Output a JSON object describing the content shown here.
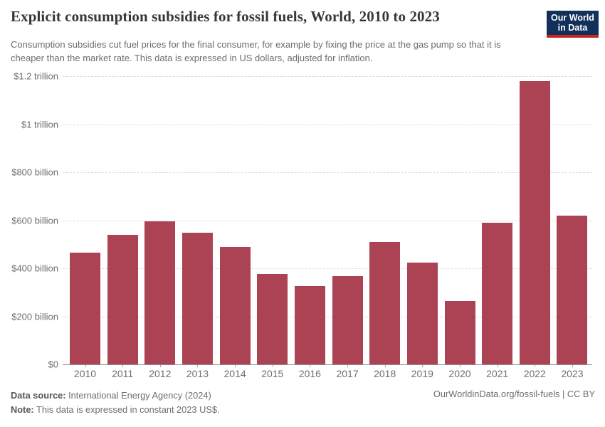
{
  "header": {
    "title": "Explicit consumption subsidies for fossil fuels, World, 2010 to 2023",
    "subtitle": "Consumption subsidies cut fuel prices for the final consumer, for example by fixing the price at the gas pump so that it is cheaper than the market rate. This data is expressed in US dollars, adjusted for inflation.",
    "logo": {
      "line1": "Our World",
      "line2": "in Data",
      "bg_color": "#12305c",
      "stripe_color": "#ca251c"
    }
  },
  "chart_data": {
    "type": "bar",
    "title": "Explicit consumption subsidies for fossil fuels, World, 2010 to 2023",
    "entity": "World",
    "unit": "US dollars (billions), constant 2023 US$",
    "categories": [
      "2010",
      "2011",
      "2012",
      "2013",
      "2014",
      "2015",
      "2016",
      "2017",
      "2018",
      "2019",
      "2020",
      "2021",
      "2022",
      "2023"
    ],
    "values": [
      466,
      539,
      597,
      548,
      490,
      376,
      326,
      367,
      511,
      423,
      263,
      589,
      1178,
      619
    ],
    "ylim": [
      0,
      1200
    ],
    "yticks": [
      {
        "value": 0,
        "label": "$0"
      },
      {
        "value": 200,
        "label": "$200 billion"
      },
      {
        "value": 400,
        "label": "$400 billion"
      },
      {
        "value": 600,
        "label": "$600 billion"
      },
      {
        "value": 800,
        "label": "$800 billion"
      },
      {
        "value": 1000,
        "label": "$1 trillion"
      },
      {
        "value": 1200,
        "label": "$1.2 trillion"
      }
    ],
    "bar_color": "#ac4354",
    "grid": true,
    "gridline_style": "dashed",
    "legend": "none"
  },
  "footer": {
    "source_label": "Data source:",
    "source_text": " International Energy Agency (2024)",
    "note_label": "Note:",
    "note_text": " This data is expressed in constant 2023 US$.",
    "attribution": "OurWorldinData.org/fossil-fuels | CC BY"
  }
}
